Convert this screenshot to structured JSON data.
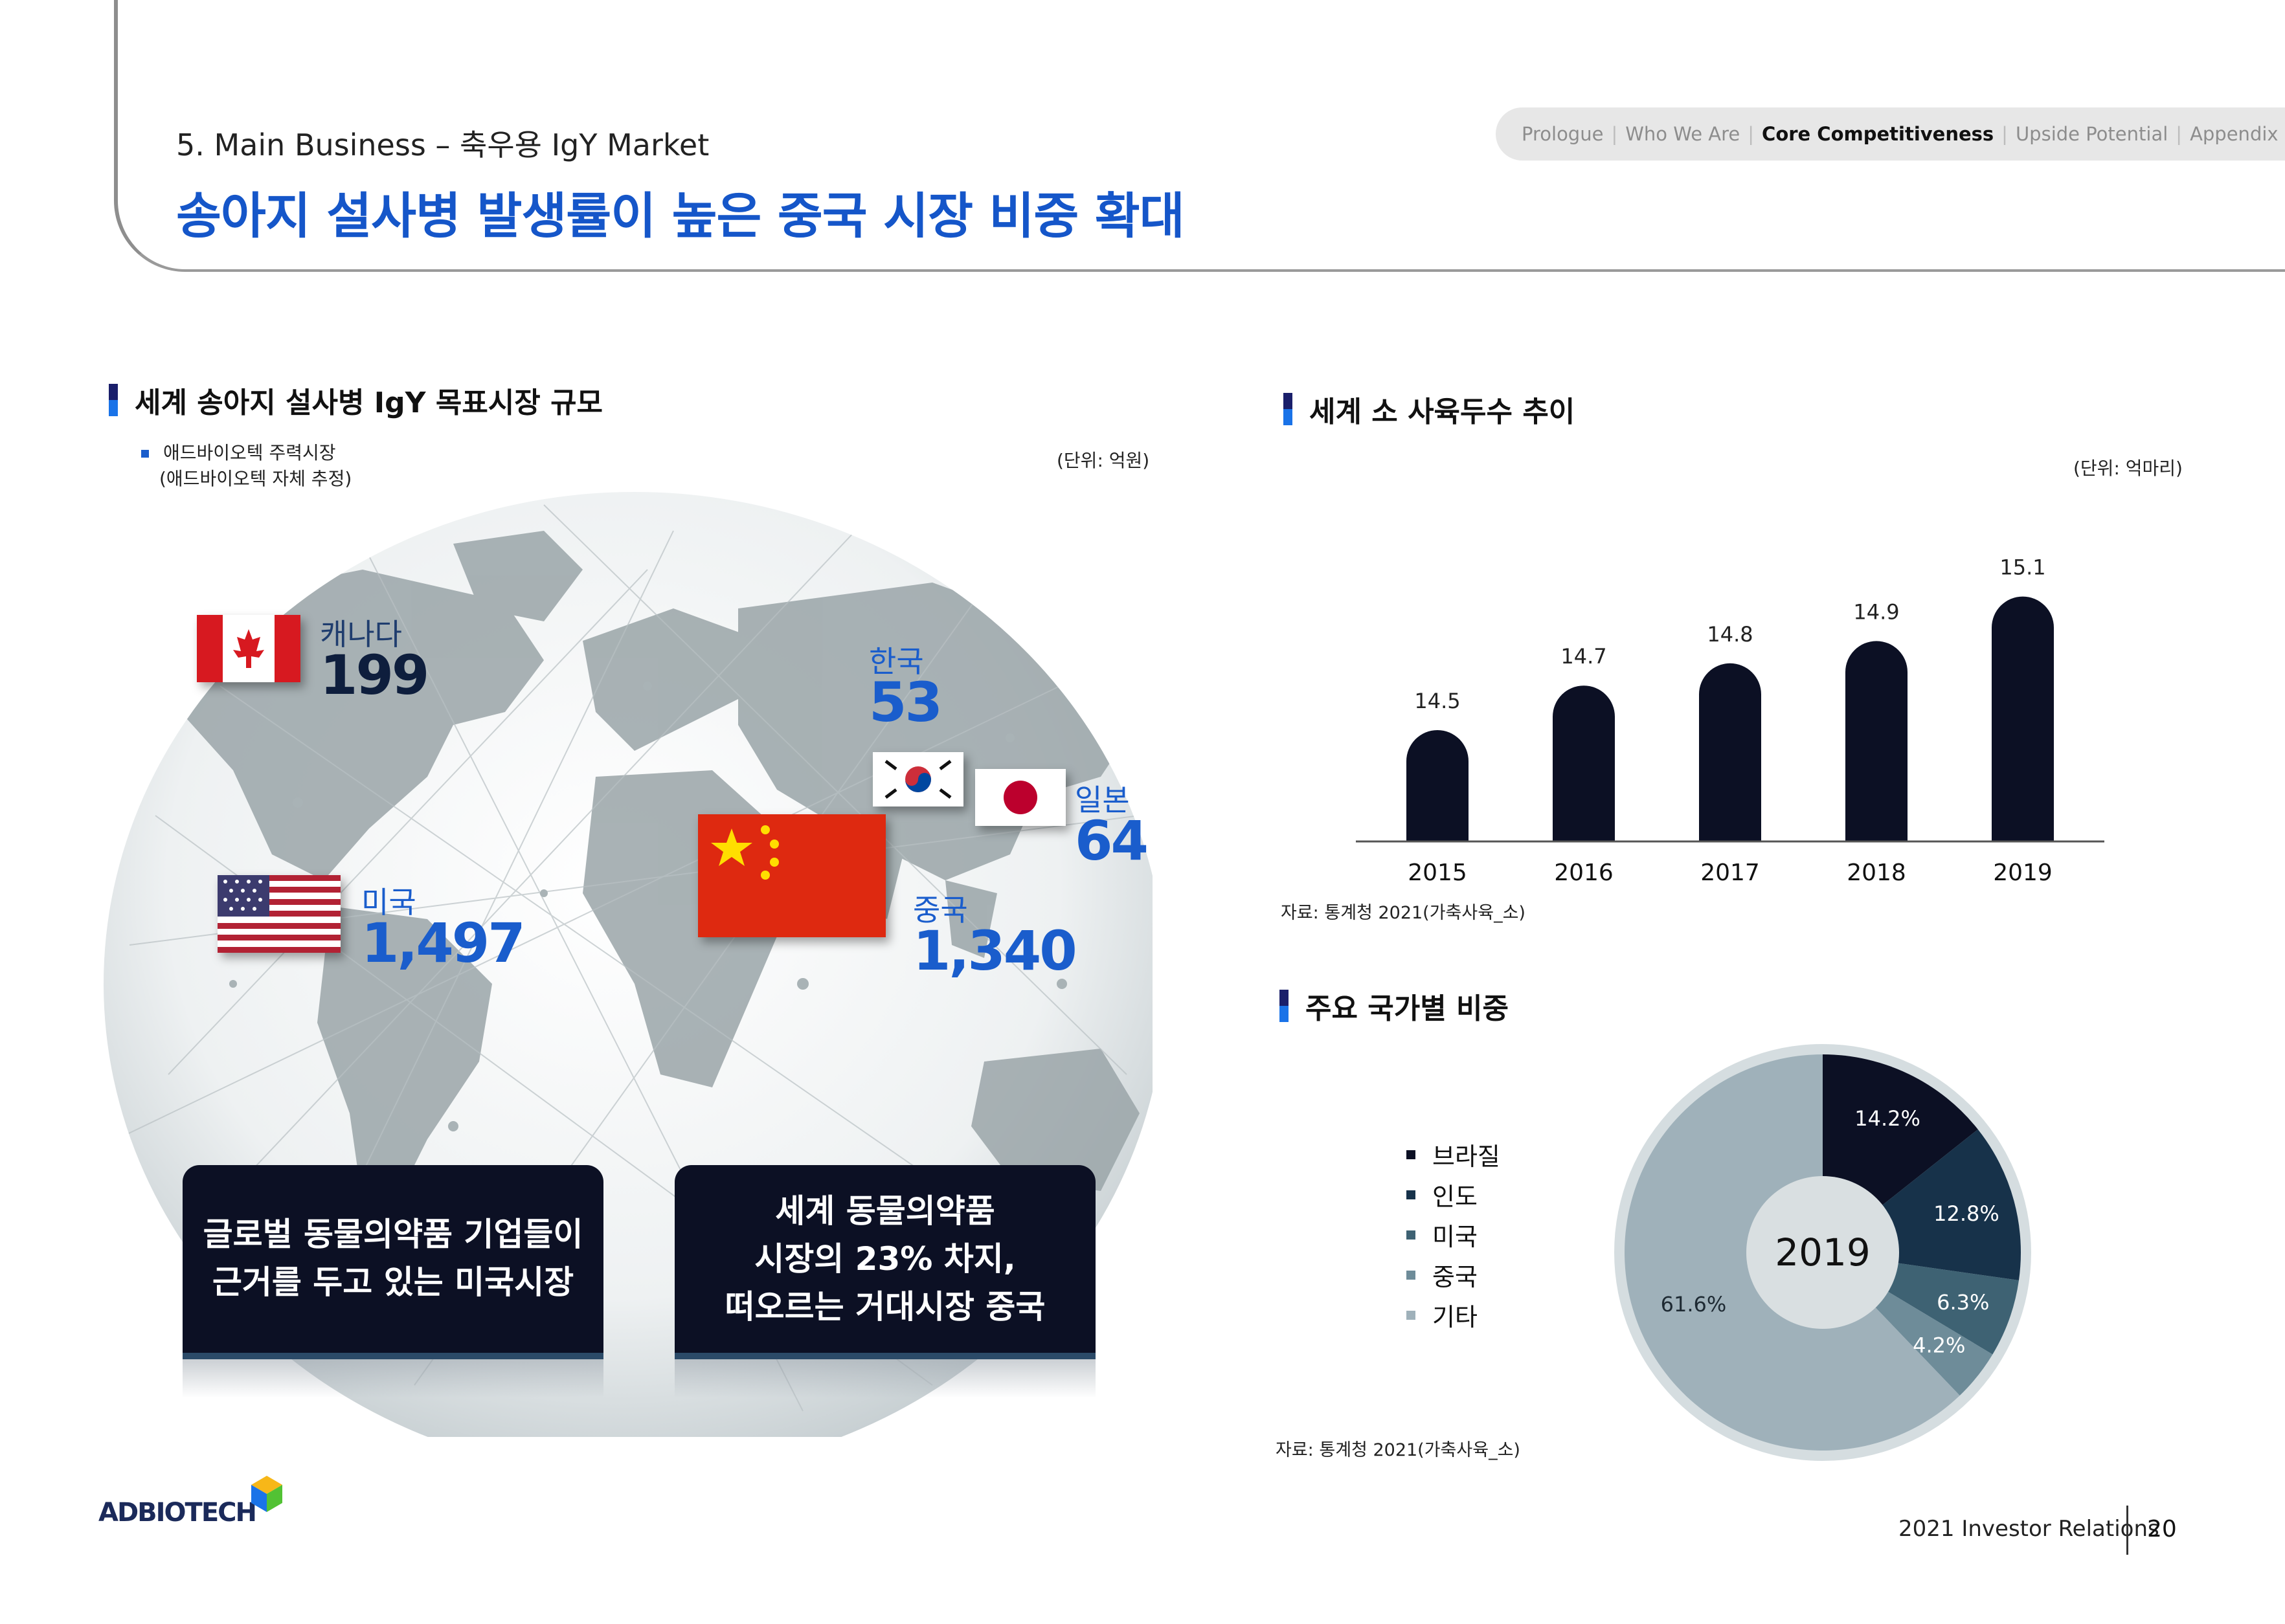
{
  "header": {
    "eyebrow": "5. Main Business – 축우용 IgY Market",
    "title": "송아지 설사병 발생률이 높은 중국 시장 비중 확대",
    "nav": [
      "Prologue",
      "Who We Are",
      "Core Competitiveness",
      "Upside Potential",
      "Appendix"
    ],
    "nav_active": "Core Competitiveness"
  },
  "left_panel": {
    "title": "세계 송아지 설사병 IgY 목표시장 규모",
    "legend_line1": "애드바이오텍 주력시장",
    "legend_line2": "(애드바이오텍 자체 추정)",
    "unit": "(단위: 억원)",
    "countries": {
      "canada": {
        "name": "캐나다",
        "value": "199"
      },
      "korea": {
        "name": "한국",
        "value": "53"
      },
      "japan": {
        "name": "일본",
        "value": "64"
      },
      "usa": {
        "name": "미국",
        "value": "1,497"
      },
      "china": {
        "name": "중국",
        "value": "1,340"
      }
    },
    "callout_usa": [
      "글로벌 동물의약품 기업들이",
      "근거를 두고 있는 미국시장"
    ],
    "callout_china": [
      "세계 동물의약품",
      "시장의 23% 차지,",
      "떠오르는 거대시장 중국"
    ]
  },
  "bar_section": {
    "title": "세계 소 사육두수 추이",
    "unit": "(단위: 억마리)",
    "source": "자료: 통계청 2021(가축사육_소)"
  },
  "chart_data": [
    {
      "type": "bar",
      "categories": [
        "2015",
        "2016",
        "2017",
        "2018",
        "2019"
      ],
      "values": [
        14.5,
        14.7,
        14.8,
        14.9,
        15.1
      ],
      "value_labels": [
        "14.5",
        "14.7",
        "14.8",
        "14.9",
        "15.1"
      ],
      "title": "세계 소 사육두수 추이",
      "unit": "(단위: 억마리)",
      "ylim": [
        14.0,
        15.25
      ],
      "grid": false,
      "color": "#0c1024"
    },
    {
      "type": "pie",
      "center_label": "2019",
      "labels": [
        "브라질",
        "인도",
        "미국",
        "중국",
        "기타"
      ],
      "values": [
        14.2,
        12.8,
        6.3,
        4.2,
        61.6
      ],
      "value_labels": [
        "14.2%",
        "12.8%",
        "6.3%",
        "4.2%",
        "61.6%"
      ],
      "colors": [
        "#0c1024",
        "#17324a",
        "#3e6273",
        "#6e8c99",
        "#9fb1ba"
      ],
      "legend_position": "left"
    }
  ],
  "pie_section": {
    "title": "주요 국가별 비중",
    "source": "자료: 통계청 2021(가축사육_소)"
  },
  "footer": {
    "logo": "ADBIOTECH",
    "report": "2021 Investor Relations",
    "page": "20"
  }
}
